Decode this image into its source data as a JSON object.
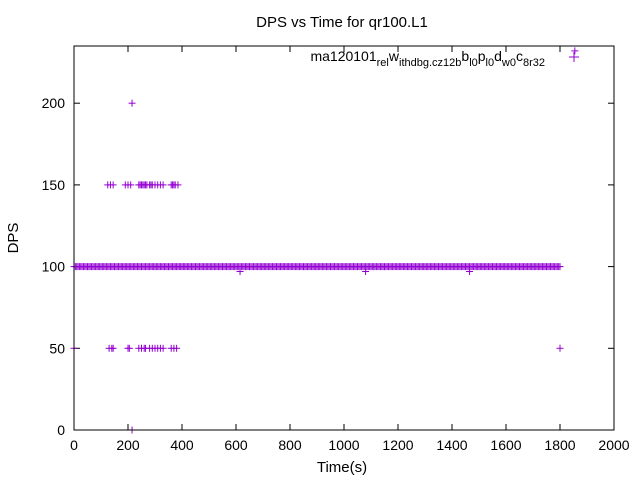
{
  "chart_data": {
    "type": "scatter",
    "title": "DPS vs Time for qr100.L1",
    "xlabel": "Time(s)",
    "ylabel": "DPS",
    "xlim": [
      0,
      2000
    ],
    "ylim": [
      0,
      235
    ],
    "xticks": [
      0,
      200,
      400,
      600,
      800,
      1000,
      1200,
      1400,
      1600,
      1800,
      2000
    ],
    "yticks": [
      0,
      50,
      100,
      150,
      200
    ],
    "xtick_labels": [
      "0",
      "200",
      "400",
      "600",
      "800",
      "1000",
      "1200",
      "1400",
      "1600",
      "1800",
      "2000"
    ],
    "ytick_labels": [
      "0",
      "50",
      "100",
      "150",
      "200"
    ],
    "grid": false,
    "legend_position": "top-right",
    "marker": "+",
    "series": [
      {
        "name": "ma120101_rel_withdbg.cz12b_bl0_pl0_dw0_c8r32",
        "name_parts": [
          {
            "text": "ma120101",
            "sub": false
          },
          {
            "text": "rel",
            "sub": true
          },
          {
            "text": "w",
            "sub": false
          },
          {
            "text": "ithdbg.cz12b",
            "sub": true
          },
          {
            "text": "b",
            "sub": false
          },
          {
            "text": "l0",
            "sub": true
          },
          {
            "text": "p",
            "sub": false
          },
          {
            "text": "l0",
            "sub": true
          },
          {
            "text": "d",
            "sub": false
          },
          {
            "text": "w0",
            "sub": true
          },
          {
            "text": "c",
            "sub": false
          },
          {
            "text": "8r32",
            "sub": true
          }
        ],
        "color": "#9400d3",
        "runs": [
          {
            "y": 100,
            "x_start": 0,
            "x_end": 1800,
            "step": 5
          }
        ],
        "points": [
          [
            0,
            50
          ],
          [
            125,
            150
          ],
          [
            135,
            150
          ],
          [
            145,
            150
          ],
          [
            130,
            50
          ],
          [
            140,
            50
          ],
          [
            145,
            50
          ],
          [
            190,
            150
          ],
          [
            200,
            150
          ],
          [
            210,
            150
          ],
          [
            200,
            50
          ],
          [
            205,
            50
          ],
          [
            215,
            200
          ],
          [
            215,
            0
          ],
          [
            240,
            150
          ],
          [
            245,
            150
          ],
          [
            250,
            150
          ],
          [
            255,
            150
          ],
          [
            260,
            150
          ],
          [
            265,
            150
          ],
          [
            270,
            150
          ],
          [
            280,
            150
          ],
          [
            285,
            150
          ],
          [
            290,
            150
          ],
          [
            300,
            150
          ],
          [
            310,
            150
          ],
          [
            320,
            150
          ],
          [
            330,
            150
          ],
          [
            360,
            150
          ],
          [
            365,
            150
          ],
          [
            370,
            150
          ],
          [
            375,
            150
          ],
          [
            385,
            150
          ],
          [
            240,
            50
          ],
          [
            250,
            50
          ],
          [
            260,
            50
          ],
          [
            265,
            50
          ],
          [
            280,
            50
          ],
          [
            290,
            50
          ],
          [
            300,
            50
          ],
          [
            310,
            50
          ],
          [
            320,
            50
          ],
          [
            330,
            50
          ],
          [
            360,
            50
          ],
          [
            370,
            50
          ],
          [
            380,
            50
          ],
          [
            615,
            97
          ],
          [
            1080,
            97
          ],
          [
            1465,
            97
          ],
          [
            1800,
            50
          ],
          [
            1855,
            232
          ]
        ]
      }
    ]
  }
}
